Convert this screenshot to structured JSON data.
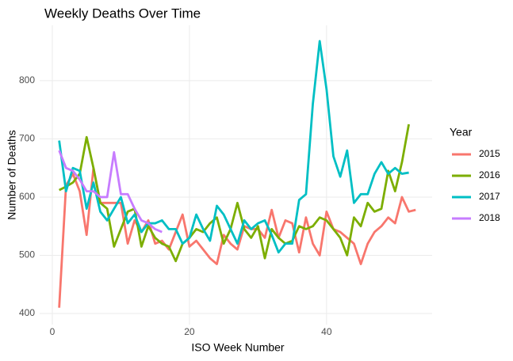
{
  "chart_data": {
    "type": "line",
    "title": "Weekly Deaths Over Time",
    "x_label": "ISO Week Number",
    "y_label": "Number of Deaths",
    "legend_title": "Year",
    "legend_position": "right",
    "grid": true,
    "xlim": [
      -1.85,
      55.4
    ],
    "ylim": [
      381,
      895
    ],
    "xticks": [
      0,
      20,
      40
    ],
    "yticks": [
      400,
      500,
      600,
      700,
      800
    ],
    "x": [
      1,
      2,
      3,
      4,
      5,
      6,
      7,
      8,
      9,
      10,
      11,
      12,
      13,
      14,
      15,
      16,
      17,
      18,
      19,
      20,
      21,
      22,
      23,
      24,
      25,
      26,
      27,
      28,
      29,
      30,
      31,
      32,
      33,
      34,
      35,
      36,
      37,
      38,
      39,
      40,
      41,
      42,
      43,
      44,
      45,
      46,
      47,
      48,
      49,
      50,
      51,
      52,
      53
    ],
    "series": [
      {
        "name": "2015",
        "color": "#F8766D",
        "values": [
          410,
          620,
          640,
          610,
          535,
          650,
          590,
          590,
          590,
          590,
          520,
          560,
          540,
          560,
          520,
          525,
          510,
          540,
          570,
          515,
          525,
          510,
          495,
          485,
          535,
          520,
          510,
          550,
          545,
          545,
          530,
          578,
          530,
          560,
          555,
          505,
          565,
          520,
          500,
          575,
          545,
          540,
          530,
          520,
          485,
          520,
          540,
          550,
          565,
          555,
          600,
          575,
          578
        ]
      },
      {
        "name": "2016",
        "color": "#7CAE00",
        "values": [
          612,
          618,
          625,
          640,
          703,
          650,
          590,
          580,
          515,
          545,
          575,
          580,
          515,
          550,
          530,
          520,
          515,
          490,
          520,
          530,
          545,
          540,
          555,
          565,
          520,
          545,
          590,
          545,
          530,
          550,
          495,
          545,
          530,
          520,
          525,
          550,
          545,
          550,
          565,
          560,
          545,
          530,
          500,
          565,
          550,
          590,
          575,
          580,
          645,
          610,
          660,
          725,
          null
        ]
      },
      {
        "name": "2017",
        "color": "#00BFC4",
        "values": [
          697,
          610,
          650,
          645,
          580,
          625,
          575,
          560,
          580,
          600,
          555,
          570,
          540,
          555,
          555,
          560,
          545,
          545,
          520,
          530,
          570,
          545,
          525,
          585,
          570,
          545,
          520,
          560,
          545,
          555,
          560,
          535,
          505,
          520,
          520,
          595,
          605,
          760,
          868,
          785,
          670,
          635,
          680,
          590,
          605,
          605,
          640,
          660,
          640,
          650,
          640,
          642,
          null
        ]
      },
      {
        "name": "2018",
        "color": "#C77CFF",
        "values": [
          680,
          650,
          645,
          630,
          610,
          610,
          600,
          600,
          677,
          605,
          605,
          580,
          560,
          555,
          545,
          540,
          null,
          null,
          null,
          null,
          null,
          null,
          null,
          null,
          null,
          null,
          null,
          null,
          null,
          null,
          null,
          null,
          null,
          null,
          null,
          null,
          null,
          null,
          null,
          null,
          null,
          null,
          null,
          null,
          null,
          null,
          null,
          null,
          null,
          null,
          null,
          null,
          null
        ]
      }
    ]
  }
}
